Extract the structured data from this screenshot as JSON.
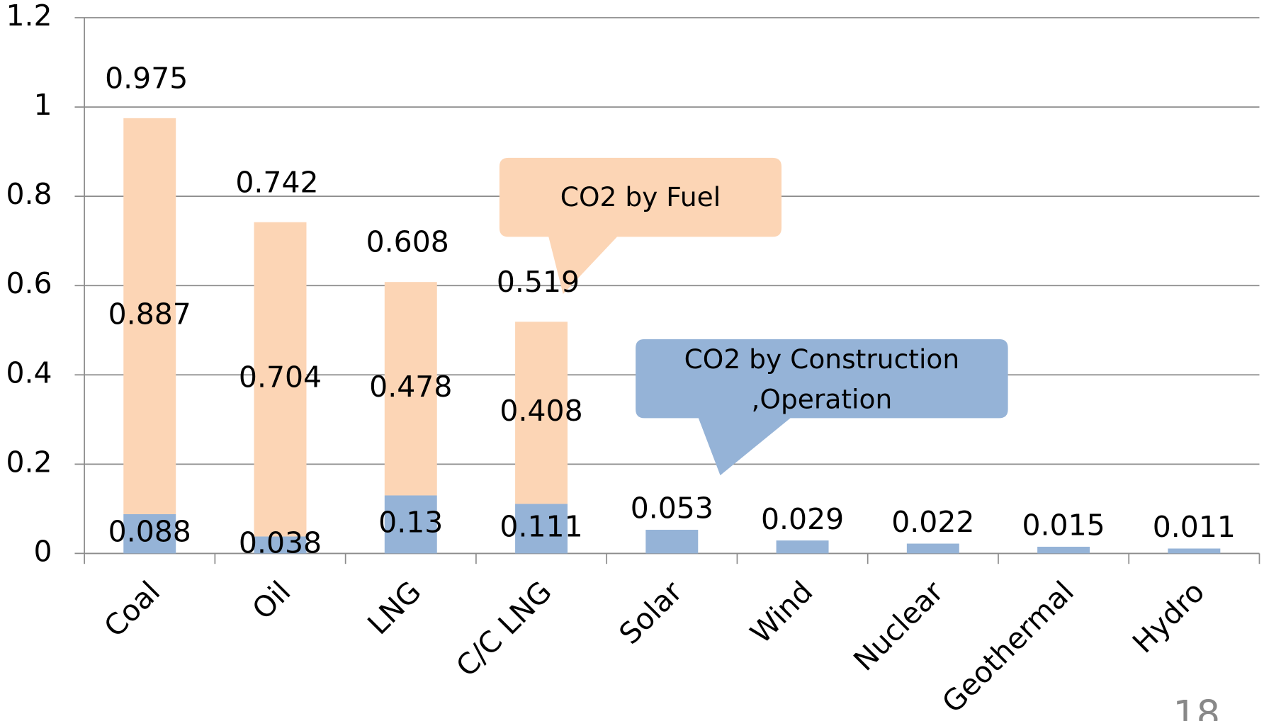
{
  "chart_data": {
    "type": "stacked_bar",
    "categories": [
      "Coal",
      "Oil",
      "LNG",
      "C/C LNG",
      "Solar",
      "Wind",
      "Nuclear",
      "Geothermal",
      "Hydro"
    ],
    "series": [
      {
        "name": "CO2 by Construction ,Operation",
        "color": "#95b3d7",
        "values": [
          0.088,
          0.038,
          0.13,
          0.111,
          0.053,
          0.029,
          0.022,
          0.015,
          0.011
        ]
      },
      {
        "name": "CO2 by Fuel",
        "color": "#fcd5b5",
        "values": [
          0.887,
          0.704,
          0.478,
          0.408,
          null,
          null,
          null,
          null,
          null
        ]
      }
    ],
    "totals": [
      0.975,
      0.742,
      0.608,
      0.519,
      null,
      null,
      null,
      null,
      null
    ],
    "ylim": [
      0,
      1.2
    ],
    "yticks": [
      0,
      0.2,
      0.4,
      0.6,
      0.8,
      1,
      1.2
    ],
    "grid": true,
    "page_number": "18"
  }
}
